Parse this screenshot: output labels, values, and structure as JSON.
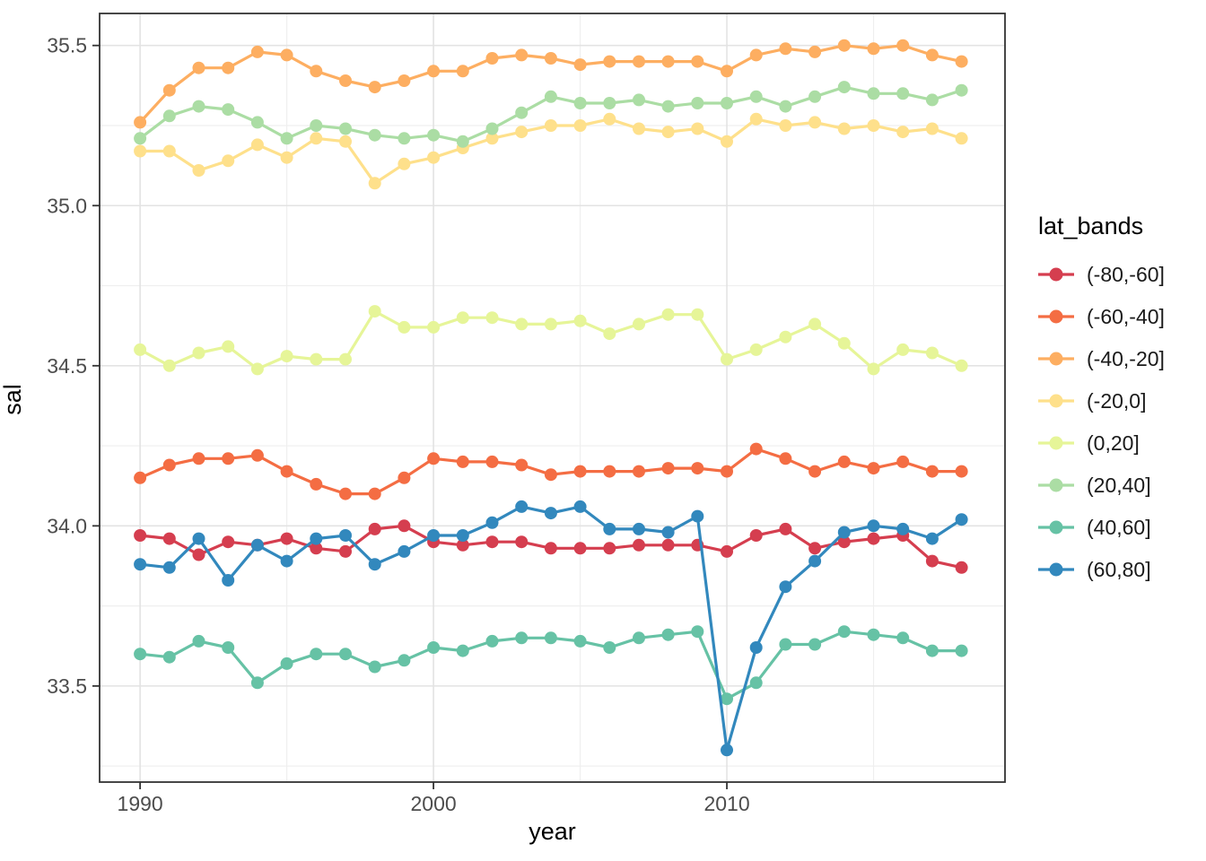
{
  "figure": {
    "xlabel": "year",
    "ylabel": "sal",
    "legend_title": "lat_bands",
    "colors": {
      "background": "#ffffff",
      "panel_background": "#ffffff",
      "panel_border": "#333333",
      "grid_major": "#e3e3e3",
      "grid_minor": "#efefef",
      "tick_mark": "#333333",
      "tick_label": "#4d4d4d",
      "text": "#000000"
    }
  },
  "chart_data": {
    "type": "line",
    "title": "",
    "xlabel": "year",
    "ylabel": "sal",
    "legend_title": "lat_bands",
    "legend_position": "right",
    "grid": true,
    "marker": "point",
    "xlim": [
      1988.62,
      2019.48
    ],
    "ylim": [
      33.2,
      35.6
    ],
    "x_ticks": [
      1990,
      2000,
      2010
    ],
    "x_tick_labels": [
      "1990",
      "2000",
      "2010"
    ],
    "x_minor_ticks": [
      1995,
      2005,
      2015
    ],
    "y_ticks": [
      33.5,
      34.0,
      34.5,
      35.0,
      35.5
    ],
    "y_tick_labels": [
      "33.5",
      "34.0",
      "34.5",
      "35.0",
      "35.5"
    ],
    "y_minor_ticks": [
      33.25,
      33.75,
      34.25,
      34.75,
      35.25
    ],
    "x": [
      1990,
      1991,
      1992,
      1993,
      1994,
      1995,
      1996,
      1997,
      1998,
      1999,
      2000,
      2001,
      2002,
      2003,
      2004,
      2005,
      2006,
      2007,
      2008,
      2009,
      2010,
      2011,
      2012,
      2013,
      2014,
      2015,
      2016,
      2017,
      2018
    ],
    "series": [
      {
        "name": "(-80,-60]",
        "color": "#d53e4f",
        "values": [
          33.97,
          33.96,
          33.91,
          33.95,
          33.94,
          33.96,
          33.93,
          33.92,
          33.99,
          34.0,
          33.95,
          33.94,
          33.95,
          33.95,
          33.93,
          33.93,
          33.93,
          33.94,
          33.94,
          33.94,
          33.92,
          33.97,
          33.99,
          33.93,
          33.95,
          33.96,
          33.97,
          33.89,
          33.87
        ]
      },
      {
        "name": "(-60,-40]",
        "color": "#f46d43",
        "values": [
          34.15,
          34.19,
          34.21,
          34.21,
          34.22,
          34.17,
          34.13,
          34.1,
          34.1,
          34.15,
          34.21,
          34.2,
          34.2,
          34.19,
          34.16,
          34.17,
          34.17,
          34.17,
          34.18,
          34.18,
          34.17,
          34.24,
          34.21,
          34.17,
          34.2,
          34.18,
          34.2,
          34.17,
          34.17
        ]
      },
      {
        "name": "(-40,-20]",
        "color": "#fdae61",
        "values": [
          35.26,
          35.36,
          35.43,
          35.43,
          35.48,
          35.47,
          35.42,
          35.39,
          35.37,
          35.39,
          35.42,
          35.42,
          35.46,
          35.47,
          35.46,
          35.44,
          35.45,
          35.45,
          35.45,
          35.45,
          35.42,
          35.47,
          35.49,
          35.48,
          35.5,
          35.49,
          35.5,
          35.47,
          35.45
        ]
      },
      {
        "name": "(-20,0]",
        "color": "#fee08b",
        "values": [
          35.17,
          35.17,
          35.11,
          35.14,
          35.19,
          35.15,
          35.21,
          35.2,
          35.07,
          35.13,
          35.15,
          35.18,
          35.21,
          35.23,
          35.25,
          35.25,
          35.27,
          35.24,
          35.23,
          35.24,
          35.2,
          35.27,
          35.25,
          35.26,
          35.24,
          35.25,
          35.23,
          35.24,
          35.21
        ]
      },
      {
        "name": "(0,20]",
        "color": "#e6f598",
        "values": [
          34.55,
          34.5,
          34.54,
          34.56,
          34.49,
          34.53,
          34.52,
          34.52,
          34.67,
          34.62,
          34.62,
          34.65,
          34.65,
          34.63,
          34.63,
          34.64,
          34.6,
          34.63,
          34.66,
          34.66,
          34.52,
          34.55,
          34.59,
          34.63,
          34.57,
          34.49,
          34.55,
          34.54,
          34.5
        ]
      },
      {
        "name": "(20,40]",
        "color": "#abdda4",
        "values": [
          35.21,
          35.28,
          35.31,
          35.3,
          35.26,
          35.21,
          35.25,
          35.24,
          35.22,
          35.21,
          35.22,
          35.2,
          35.24,
          35.29,
          35.34,
          35.32,
          35.32,
          35.33,
          35.31,
          35.32,
          35.32,
          35.34,
          35.31,
          35.34,
          35.37,
          35.35,
          35.35,
          35.33,
          35.36
        ]
      },
      {
        "name": "(40,60]",
        "color": "#66c2a5",
        "values": [
          33.6,
          33.59,
          33.64,
          33.62,
          33.51,
          33.57,
          33.6,
          33.6,
          33.56,
          33.58,
          33.62,
          33.61,
          33.64,
          33.65,
          33.65,
          33.64,
          33.62,
          33.65,
          33.66,
          33.67,
          33.46,
          33.51,
          33.63,
          33.63,
          33.67,
          33.66,
          33.65,
          33.61,
          33.61
        ]
      },
      {
        "name": "(60,80]",
        "color": "#3288bd",
        "values": [
          33.88,
          33.87,
          33.96,
          33.83,
          33.94,
          33.89,
          33.96,
          33.97,
          33.88,
          33.92,
          33.97,
          33.97,
          34.01,
          34.06,
          34.04,
          34.06,
          33.99,
          33.99,
          33.98,
          34.03,
          33.3,
          33.62,
          33.81,
          33.89,
          33.98,
          34.0,
          33.99,
          33.96,
          34.02
        ]
      }
    ]
  }
}
